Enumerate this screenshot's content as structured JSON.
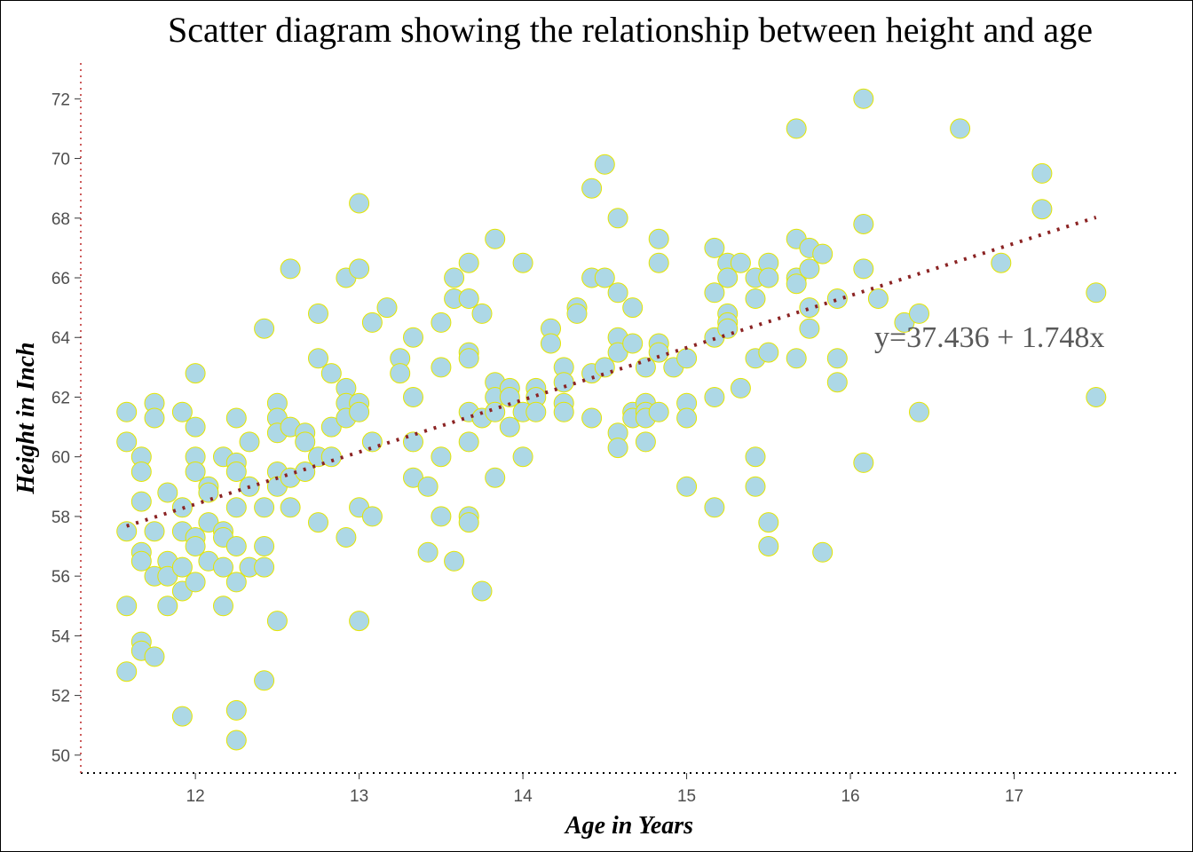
{
  "chart_data": {
    "type": "scatter",
    "title": "Scatter diagram showing the relationship between height and age",
    "xlabel": "Age in Years",
    "ylabel": "Height in Inch",
    "xlim": [
      11.3,
      18.0
    ],
    "ylim": [
      49.4,
      73.2
    ],
    "x_ticks": [
      12,
      13,
      14,
      15,
      16,
      17
    ],
    "y_ticks": [
      50,
      52,
      54,
      56,
      58,
      60,
      62,
      64,
      66,
      68,
      70,
      72
    ],
    "grid": false,
    "point_fill": "#add8e6",
    "point_stroke": "#e6e600",
    "trendline": {
      "intercept": 37.436,
      "slope": 1.748,
      "x_range": [
        11.58,
        17.5
      ],
      "color": "#8b2323",
      "style": "dotted"
    },
    "equation_label": "y=37.436 + 1.748x",
    "axis_line_color": "#000000",
    "y_axis_line_color": "#cd5c5c",
    "points": [
      [
        11.58,
        61.5
      ],
      [
        11.58,
        60.5
      ],
      [
        11.58,
        57.5
      ],
      [
        11.58,
        55
      ],
      [
        11.58,
        52.8
      ],
      [
        11.67,
        60
      ],
      [
        11.67,
        59.5
      ],
      [
        11.67,
        58.5
      ],
      [
        11.67,
        56.8
      ],
      [
        11.67,
        56.5
      ],
      [
        11.67,
        53.8
      ],
      [
        11.67,
        53.5
      ],
      [
        11.75,
        61.8
      ],
      [
        11.75,
        61.3
      ],
      [
        11.75,
        57.5
      ],
      [
        11.75,
        56
      ],
      [
        11.75,
        53.3
      ],
      [
        11.83,
        58.8
      ],
      [
        11.83,
        56.5
      ],
      [
        11.83,
        56
      ],
      [
        11.83,
        55
      ],
      [
        11.92,
        61.5
      ],
      [
        11.92,
        58.3
      ],
      [
        11.92,
        57.5
      ],
      [
        11.92,
        56.3
      ],
      [
        11.92,
        55.5
      ],
      [
        11.92,
        51.3
      ],
      [
        12,
        62.8
      ],
      [
        12,
        61
      ],
      [
        12,
        60
      ],
      [
        12,
        59.5
      ],
      [
        12,
        57.3
      ],
      [
        12,
        57
      ],
      [
        12,
        55.8
      ],
      [
        12.08,
        59
      ],
      [
        12.08,
        58.8
      ],
      [
        12.08,
        57.8
      ],
      [
        12.08,
        56.5
      ],
      [
        12.17,
        60
      ],
      [
        12.17,
        57.5
      ],
      [
        12.17,
        57.3
      ],
      [
        12.17,
        56.3
      ],
      [
        12.17,
        55
      ],
      [
        12.25,
        61.3
      ],
      [
        12.25,
        59.8
      ],
      [
        12.25,
        59.5
      ],
      [
        12.25,
        58.3
      ],
      [
        12.25,
        57
      ],
      [
        12.25,
        55.8
      ],
      [
        12.25,
        51.5
      ],
      [
        12.25,
        50.5
      ],
      [
        12.33,
        60.5
      ],
      [
        12.33,
        59
      ],
      [
        12.33,
        56.3
      ],
      [
        12.42,
        64.3
      ],
      [
        12.42,
        58.3
      ],
      [
        12.42,
        57
      ],
      [
        12.42,
        56.3
      ],
      [
        12.42,
        52.5
      ],
      [
        12.5,
        61.8
      ],
      [
        12.5,
        61.3
      ],
      [
        12.5,
        60.8
      ],
      [
        12.5,
        59.5
      ],
      [
        12.5,
        59
      ],
      [
        12.5,
        54.5
      ],
      [
        12.58,
        66.3
      ],
      [
        12.58,
        61
      ],
      [
        12.58,
        59.3
      ],
      [
        12.58,
        58.3
      ],
      [
        12.67,
        60.8
      ],
      [
        12.67,
        60.5
      ],
      [
        12.67,
        59.5
      ],
      [
        12.75,
        64.8
      ],
      [
        12.75,
        63.3
      ],
      [
        12.75,
        60
      ],
      [
        12.75,
        57.8
      ],
      [
        12.83,
        62.8
      ],
      [
        12.83,
        61
      ],
      [
        12.83,
        60
      ],
      [
        12.92,
        66
      ],
      [
        12.92,
        62.3
      ],
      [
        12.92,
        61.8
      ],
      [
        12.92,
        61.3
      ],
      [
        12.92,
        57.3
      ],
      [
        13,
        68.5
      ],
      [
        13,
        66.3
      ],
      [
        13,
        61.8
      ],
      [
        13,
        61.5
      ],
      [
        13,
        58.3
      ],
      [
        13,
        54.5
      ],
      [
        13.08,
        64.5
      ],
      [
        13.08,
        60.5
      ],
      [
        13.08,
        58
      ],
      [
        13.17,
        65
      ],
      [
        13.25,
        63.3
      ],
      [
        13.25,
        62.8
      ],
      [
        13.33,
        64
      ],
      [
        13.33,
        62
      ],
      [
        13.33,
        60.5
      ],
      [
        13.33,
        59.3
      ],
      [
        13.42,
        59
      ],
      [
        13.42,
        56.8
      ],
      [
        13.5,
        64.5
      ],
      [
        13.5,
        63
      ],
      [
        13.5,
        60
      ],
      [
        13.5,
        58
      ],
      [
        13.58,
        66
      ],
      [
        13.58,
        65.3
      ],
      [
        13.58,
        56.5
      ],
      [
        13.67,
        66.5
      ],
      [
        13.67,
        65.3
      ],
      [
        13.67,
        63.5
      ],
      [
        13.67,
        63.3
      ],
      [
        13.67,
        61.5
      ],
      [
        13.67,
        60.5
      ],
      [
        13.67,
        58
      ],
      [
        13.67,
        57.8
      ],
      [
        13.75,
        64.8
      ],
      [
        13.75,
        61.3
      ],
      [
        13.75,
        55.5
      ],
      [
        13.83,
        67.3
      ],
      [
        13.83,
        62.5
      ],
      [
        13.83,
        62
      ],
      [
        13.83,
        61.5
      ],
      [
        13.83,
        59.3
      ],
      [
        13.92,
        62.3
      ],
      [
        13.92,
        62
      ],
      [
        13.92,
        61
      ],
      [
        14,
        66.5
      ],
      [
        14,
        61.5
      ],
      [
        14,
        60
      ],
      [
        14.08,
        62.3
      ],
      [
        14.08,
        62
      ],
      [
        14.08,
        61.5
      ],
      [
        14.17,
        64.3
      ],
      [
        14.17,
        63.8
      ],
      [
        14.25,
        63
      ],
      [
        14.25,
        62.5
      ],
      [
        14.25,
        61.8
      ],
      [
        14.25,
        61.5
      ],
      [
        14.33,
        65
      ],
      [
        14.33,
        64.8
      ],
      [
        14.42,
        69
      ],
      [
        14.42,
        66
      ],
      [
        14.42,
        62.8
      ],
      [
        14.42,
        61.3
      ],
      [
        14.5,
        69.8
      ],
      [
        14.5,
        66
      ],
      [
        14.5,
        63
      ],
      [
        14.58,
        68
      ],
      [
        14.58,
        65.5
      ],
      [
        14.58,
        64
      ],
      [
        14.58,
        63.5
      ],
      [
        14.58,
        60.8
      ],
      [
        14.58,
        60.3
      ],
      [
        14.67,
        65
      ],
      [
        14.67,
        63.8
      ],
      [
        14.67,
        61.5
      ],
      [
        14.67,
        61.3
      ],
      [
        14.75,
        63
      ],
      [
        14.75,
        61.8
      ],
      [
        14.75,
        61.5
      ],
      [
        14.75,
        61.3
      ],
      [
        14.75,
        60.5
      ],
      [
        14.83,
        67.3
      ],
      [
        14.83,
        66.5
      ],
      [
        14.83,
        63.8
      ],
      [
        14.83,
        63.5
      ],
      [
        14.83,
        61.5
      ],
      [
        14.92,
        63
      ],
      [
        15,
        63.3
      ],
      [
        15,
        61.8
      ],
      [
        15,
        61.3
      ],
      [
        15,
        59
      ],
      [
        15.17,
        67
      ],
      [
        15.17,
        65.5
      ],
      [
        15.17,
        64
      ],
      [
        15.17,
        62
      ],
      [
        15.17,
        58.3
      ],
      [
        15.25,
        66.5
      ],
      [
        15.25,
        66
      ],
      [
        15.25,
        64.8
      ],
      [
        15.25,
        64.5
      ],
      [
        15.25,
        64.3
      ],
      [
        15.33,
        66.5
      ],
      [
        15.33,
        62.3
      ],
      [
        15.42,
        66
      ],
      [
        15.42,
        65.3
      ],
      [
        15.42,
        63.3
      ],
      [
        15.42,
        60
      ],
      [
        15.42,
        59
      ],
      [
        15.5,
        66.5
      ],
      [
        15.5,
        66
      ],
      [
        15.5,
        63.5
      ],
      [
        15.5,
        57.8
      ],
      [
        15.5,
        57
      ],
      [
        15.67,
        71
      ],
      [
        15.67,
        67.3
      ],
      [
        15.67,
        66
      ],
      [
        15.67,
        65.8
      ],
      [
        15.67,
        63.3
      ],
      [
        15.75,
        67
      ],
      [
        15.75,
        66.3
      ],
      [
        15.75,
        65
      ],
      [
        15.75,
        64.3
      ],
      [
        15.83,
        66.8
      ],
      [
        15.83,
        56.8
      ],
      [
        15.92,
        65.3
      ],
      [
        15.92,
        63.3
      ],
      [
        15.92,
        62.5
      ],
      [
        16.08,
        72
      ],
      [
        16.08,
        67.8
      ],
      [
        16.08,
        66.3
      ],
      [
        16.08,
        59.8
      ],
      [
        16.17,
        65.3
      ],
      [
        16.33,
        64.5
      ],
      [
        16.42,
        64.8
      ],
      [
        16.42,
        61.5
      ],
      [
        16.67,
        71
      ],
      [
        16.92,
        66.5
      ],
      [
        17.17,
        69.5
      ],
      [
        17.17,
        68.3
      ],
      [
        17.5,
        65.5
      ],
      [
        17.5,
        62
      ]
    ]
  }
}
